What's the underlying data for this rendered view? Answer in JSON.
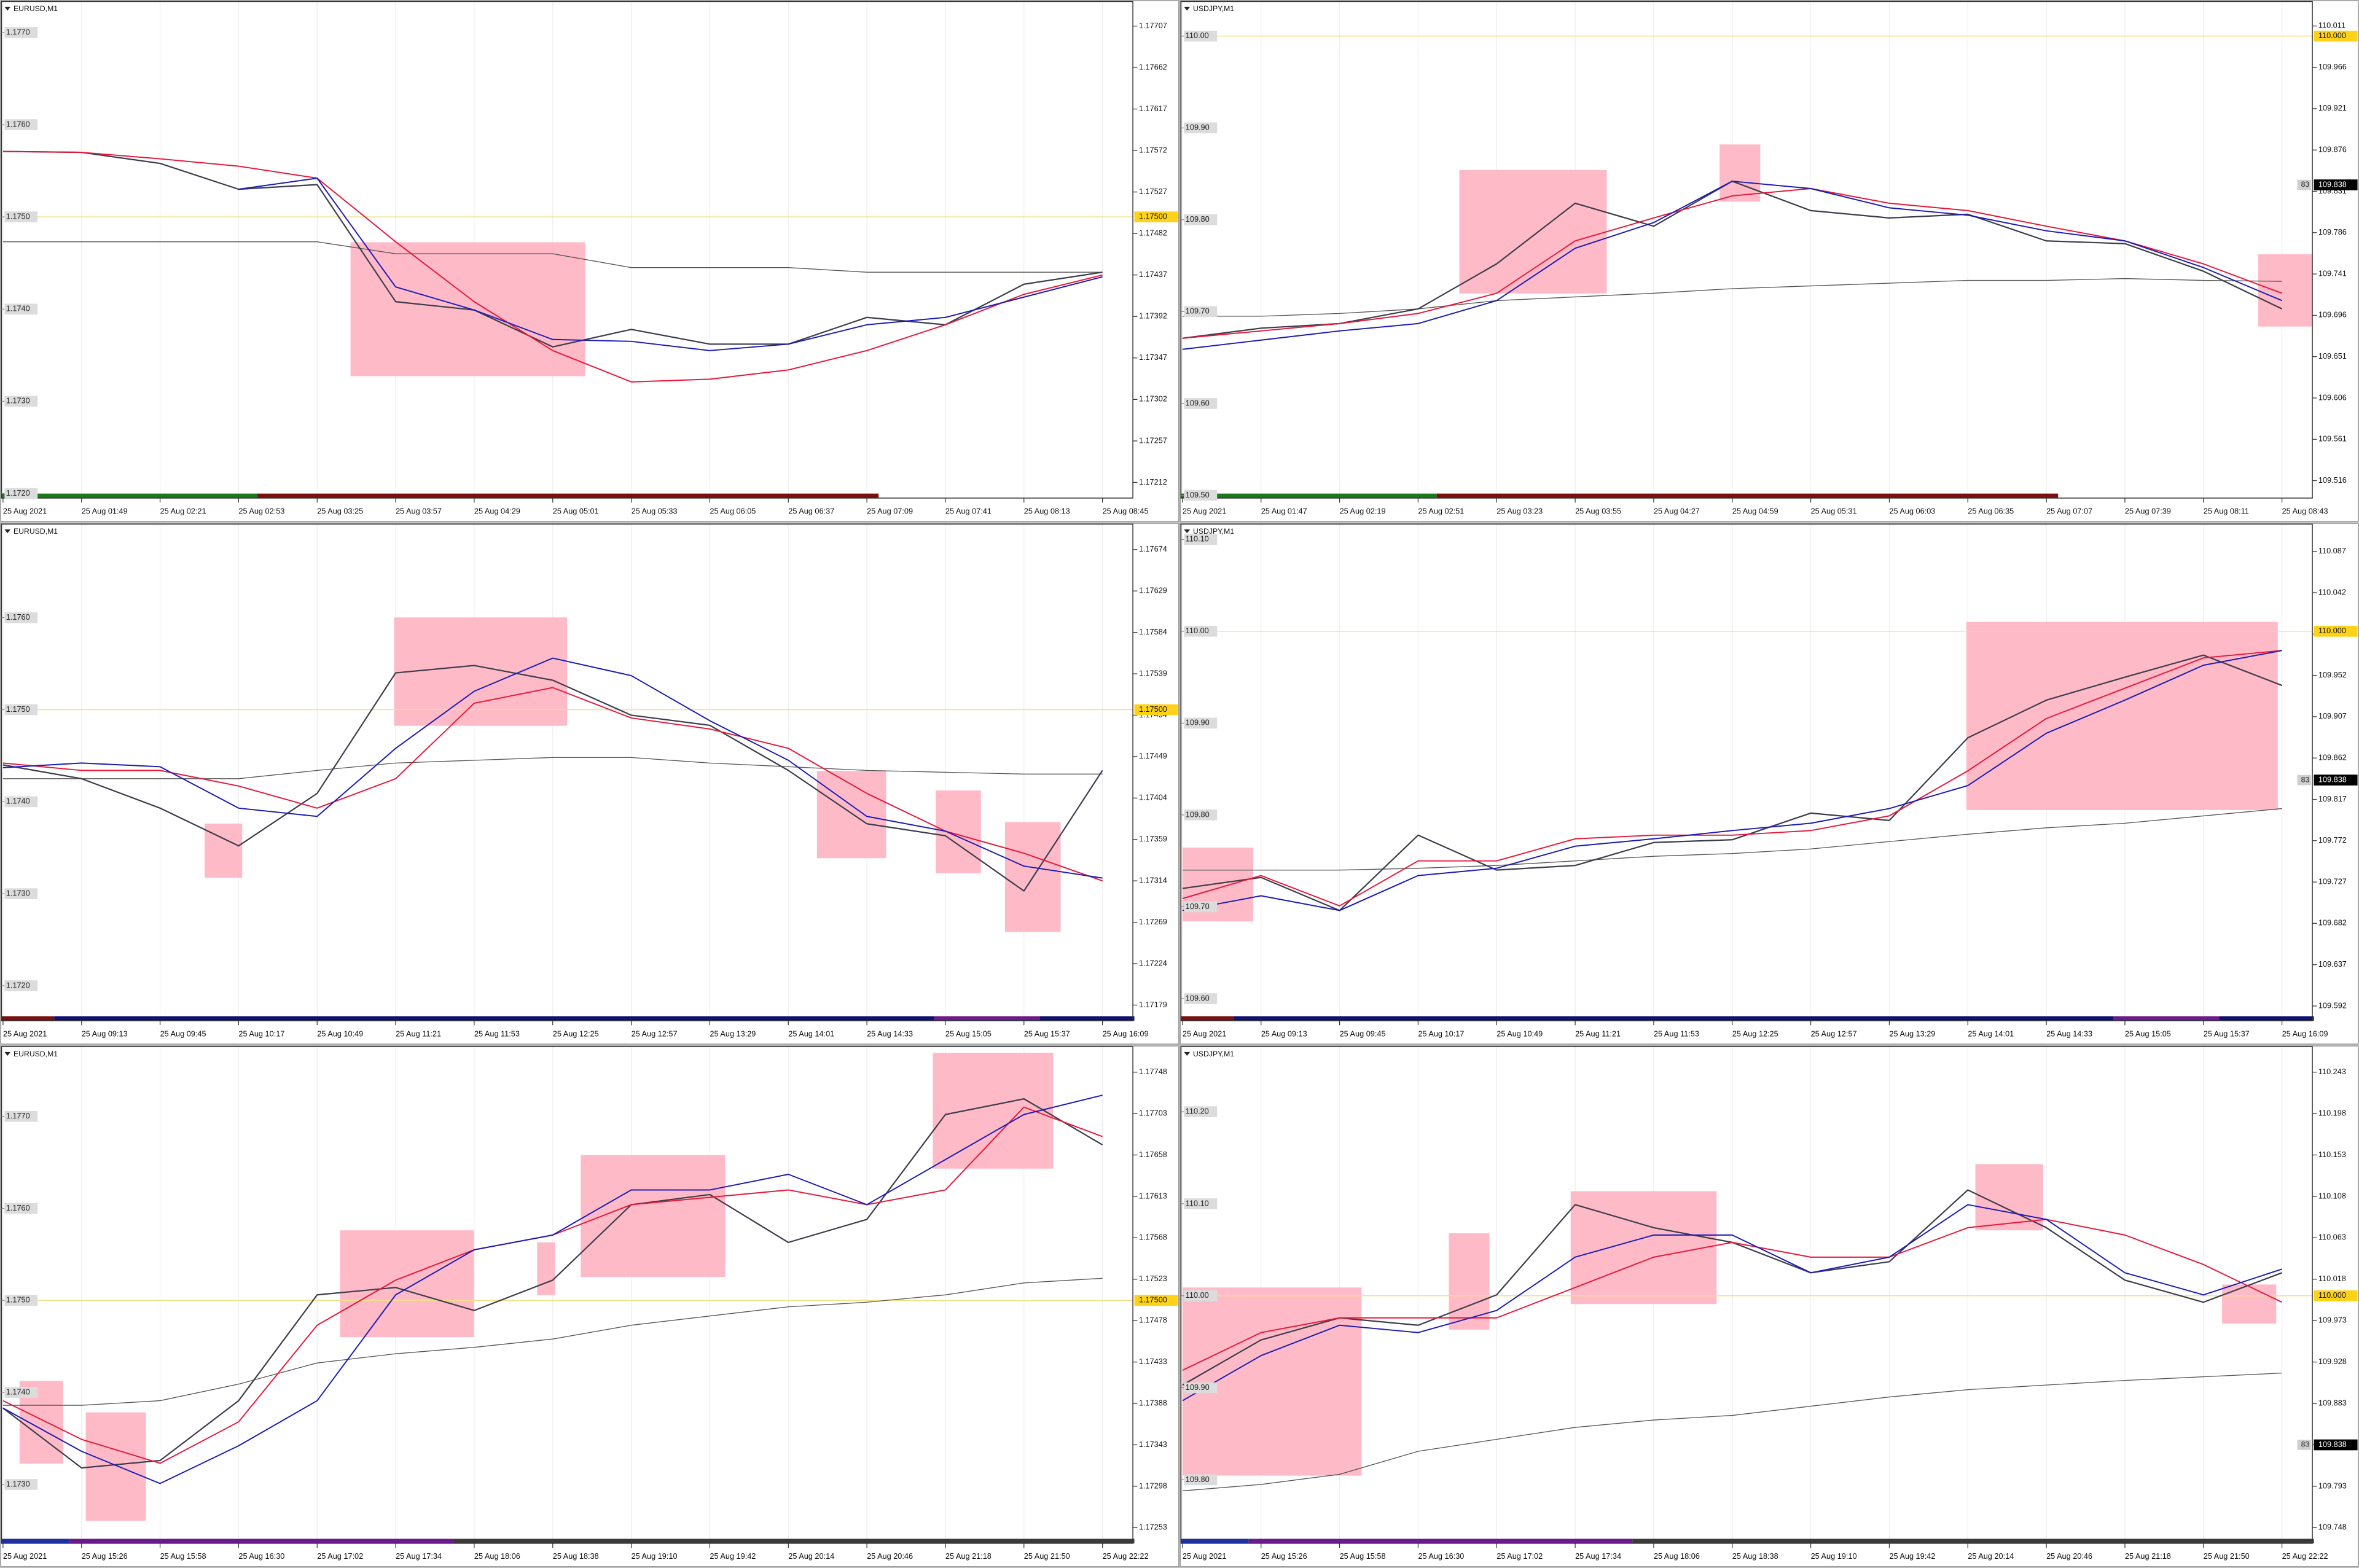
{
  "chart_data": [
    {
      "type": "line",
      "title": "EURUSD,M1",
      "categories": [
        "25 Aug 2021",
        "25 Aug 01:49",
        "25 Aug 02:21",
        "25 Aug 02:53",
        "25 Aug 03:25",
        "25 Aug 03:57",
        "25 Aug 04:29",
        "25 Aug 05:01",
        "25 Aug 05:33",
        "25 Aug 06:05",
        "25 Aug 06:37",
        "25 Aug 07:09",
        "25 Aug 07:41",
        "25 Aug 08:13",
        "25 Aug 08:45"
      ],
      "series": [
        {
          "color": "#3c3c4c",
          "values": [
            1.17571,
            1.1757,
            1.17558,
            1.1753,
            1.17535,
            1.17408,
            1.17399,
            1.17359,
            1.17378,
            1.17362,
            1.17362,
            1.17391,
            1.17383,
            1.17427,
            1.1744
          ]
        },
        {
          "color": "#e8173a",
          "values": [
            1.17571,
            1.1757,
            1.17563,
            1.17555,
            1.17542,
            1.17473,
            1.17408,
            1.17355,
            1.17321,
            1.17324,
            1.17334,
            1.17355,
            1.17383,
            1.17416,
            1.17437
          ]
        },
        {
          "color": "#1a1ab8",
          "values": [
            null,
            null,
            null,
            1.1753,
            1.17542,
            1.17424,
            1.17399,
            1.17367,
            1.17365,
            1.17355,
            1.17362,
            1.17383,
            1.17391,
            1.17413,
            1.17435
          ]
        },
        {
          "color": "#555555",
          "values": [
            1.17473,
            1.17473,
            1.17473,
            1.17473,
            1.17473,
            1.1746,
            1.1746,
            1.1746,
            1.17445,
            1.17445,
            1.17445,
            1.1744,
            1.1744,
            1.1744,
            1.1744
          ]
        }
      ],
      "ylim": [
        1.17195,
        1.17732
      ],
      "yticks": [
        1.17707,
        1.17662,
        1.17617,
        1.17572,
        1.17527,
        1.17482,
        1.17437,
        1.17392,
        1.17347,
        1.17302,
        1.17257,
        1.17212
      ],
      "levels": [
        {
          "value": 1.177,
          "label": "1.1770"
        },
        {
          "value": 1.176,
          "label": "1.1760"
        },
        {
          "value": 1.175,
          "label": "1.1750"
        },
        {
          "value": 1.174,
          "label": "1.1740"
        },
        {
          "value": 1.173,
          "label": "1.1730"
        },
        {
          "value": 1.172,
          "label": "1.1720"
        }
      ],
      "highlight_level": {
        "value": 1.175,
        "label": "1.17500"
      }
    },
    {
      "type": "line",
      "title": "USDJPY,M1",
      "categories": [
        "25 Aug 2021",
        "25 Aug 01:47",
        "25 Aug 02:19",
        "25 Aug 02:51",
        "25 Aug 03:23",
        "25 Aug 03:55",
        "25 Aug 04:27",
        "25 Aug 04:59",
        "25 Aug 05:31",
        "25 Aug 06:03",
        "25 Aug 06:35",
        "25 Aug 07:07",
        "25 Aug 07:39",
        "25 Aug 08:11",
        "25 Aug 08:43"
      ],
      "series": [
        {
          "color": "#3c3c4c",
          "values": [
            109.671,
            109.682,
            109.687,
            109.703,
            109.752,
            109.818,
            109.793,
            109.842,
            109.81,
            109.802,
            109.806,
            109.777,
            109.774,
            109.744,
            109.703
          ]
        },
        {
          "color": "#e8173a",
          "values": [
            109.671,
            109.679,
            109.687,
            109.698,
            109.72,
            109.777,
            109.802,
            109.826,
            109.834,
            109.818,
            109.81,
            109.793,
            109.777,
            109.752,
            109.72
          ]
        },
        {
          "color": "#1a1ab8",
          "values": [
            109.659,
            109.669,
            109.679,
            109.687,
            109.712,
            109.769,
            109.797,
            109.842,
            109.834,
            109.813,
            109.805,
            109.788,
            109.777,
            109.748,
            109.712
          ]
        },
        {
          "color": "#555555",
          "values": [
            109.695,
            109.695,
            109.698,
            109.703,
            109.712,
            109.716,
            109.72,
            109.725,
            109.728,
            109.731,
            109.734,
            109.734,
            109.736,
            109.734,
            109.733
          ]
        }
      ],
      "ylim": [
        109.497,
        110.036
      ],
      "yticks": [
        110.011,
        109.966,
        109.921,
        109.876,
        109.831,
        109.786,
        109.741,
        109.696,
        109.651,
        109.606,
        109.561,
        109.516
      ],
      "levels": [
        {
          "value": 110,
          "label": "110.00"
        },
        {
          "value": 109.9,
          "label": "109.90"
        },
        {
          "value": 109.8,
          "label": "109.80"
        },
        {
          "value": 109.7,
          "label": "109.70"
        },
        {
          "value": 109.6,
          "label": "109.60"
        },
        {
          "value": 109.5,
          "label": "109.50"
        }
      ],
      "highlight_level": {
        "value": 110,
        "label": "110.000"
      },
      "current_price": 109.838,
      "spread_label": "83"
    },
    {
      "type": "line",
      "title": "EURUSD,M1",
      "categories": [
        "25 Aug 2021",
        "25 Aug 09:13",
        "25 Aug 09:45",
        "25 Aug 10:17",
        "25 Aug 10:49",
        "25 Aug 11:21",
        "25 Aug 11:53",
        "25 Aug 12:25",
        "25 Aug 12:57",
        "25 Aug 13:29",
        "25 Aug 14:01",
        "25 Aug 14:33",
        "25 Aug 15:05",
        "25 Aug 15:37",
        "25 Aug 16:09"
      ],
      "series": [
        {
          "color": "#3c3c4c",
          "values": [
            1.1744,
            1.17425,
            1.17393,
            1.17352,
            1.17409,
            1.1754,
            1.17548,
            1.17532,
            1.17494,
            1.17483,
            1.17434,
            1.17376,
            1.17363,
            1.17303,
            1.17434
          ]
        },
        {
          "color": "#e8173a",
          "values": [
            1.17442,
            1.17434,
            1.17434,
            1.17417,
            1.17393,
            1.17425,
            1.17507,
            1.17524,
            1.17491,
            1.17479,
            1.17458,
            1.17409,
            1.17368,
            1.17344,
            1.17314
          ]
        },
        {
          "color": "#1a1ab8",
          "values": [
            1.17437,
            1.17442,
            1.17438,
            1.17393,
            1.17384,
            1.17458,
            1.1752,
            1.17556,
            1.17537,
            1.17488,
            1.17445,
            1.17384,
            1.17368,
            1.1733,
            1.17317
          ]
        },
        {
          "color": "#555555",
          "values": [
            1.17425,
            1.17425,
            1.17425,
            1.17425,
            1.17434,
            1.17442,
            1.17445,
            1.17448,
            1.17448,
            1.17442,
            1.17438,
            1.17434,
            1.17432,
            1.1743,
            1.1743
          ]
        }
      ],
      "ylim": [
        1.17162,
        1.177
      ],
      "yticks": [
        1.17674,
        1.17629,
        1.17584,
        1.17539,
        1.17494,
        1.17449,
        1.17404,
        1.17359,
        1.17314,
        1.17269,
        1.17224,
        1.17179
      ],
      "levels": [
        {
          "value": 1.176,
          "label": "1.1760"
        },
        {
          "value": 1.175,
          "label": "1.1750"
        },
        {
          "value": 1.174,
          "label": "1.1740"
        },
        {
          "value": 1.173,
          "label": "1.1730"
        },
        {
          "value": 1.172,
          "label": "1.1720"
        }
      ],
      "highlight_level": {
        "value": 1.175,
        "label": "1.17500"
      }
    },
    {
      "type": "line",
      "title": "USDJPY,M1",
      "categories": [
        "25 Aug 2021",
        "25 Aug 09:13",
        "25 Aug 09:45",
        "25 Aug 10:17",
        "25 Aug 10:49",
        "25 Aug 11:21",
        "25 Aug 11:53",
        "25 Aug 12:25",
        "25 Aug 12:57",
        "25 Aug 13:29",
        "25 Aug 14:01",
        "25 Aug 14:33",
        "25 Aug 15:05",
        "25 Aug 15:37",
        "25 Aug 16:09"
      ],
      "series": [
        {
          "color": "#3c3c4c",
          "values": [
            109.72,
            109.732,
            109.696,
            109.778,
            109.74,
            109.745,
            109.77,
            109.773,
            109.802,
            109.794,
            109.884,
            109.925,
            109.95,
            109.974,
            109.941
          ]
        },
        {
          "color": "#e8173a",
          "values": [
            109.709,
            109.734,
            109.701,
            109.75,
            109.75,
            109.774,
            109.778,
            109.778,
            109.783,
            109.799,
            109.848,
            109.905,
            109.938,
            109.971,
            109.979
          ]
        },
        {
          "color": "#1a1ab8",
          "values": [
            109.696,
            109.712,
            109.696,
            109.734,
            109.742,
            109.766,
            109.774,
            109.783,
            109.791,
            109.807,
            109.832,
            109.889,
            109.925,
            109.963,
            109.979
          ]
        },
        {
          "color": "#555555",
          "values": [
            109.74,
            109.74,
            109.74,
            109.742,
            109.745,
            109.75,
            109.755,
            109.758,
            109.763,
            109.771,
            109.779,
            109.786,
            109.791,
            109.799,
            109.807
          ]
        }
      ],
      "ylim": [
        109.576,
        110.115
      ],
      "yticks": [
        110.087,
        110.042,
        109.997,
        109.952,
        109.907,
        109.862,
        109.817,
        109.772,
        109.727,
        109.682,
        109.637,
        109.592
      ],
      "levels": [
        {
          "value": 110.1,
          "label": "110.10"
        },
        {
          "value": 110,
          "label": "110.00"
        },
        {
          "value": 109.9,
          "label": "109.90"
        },
        {
          "value": 109.8,
          "label": "109.80"
        },
        {
          "value": 109.7,
          "label": "109.70"
        },
        {
          "value": 109.6,
          "label": "109.60"
        }
      ],
      "highlight_level": {
        "value": 110,
        "label": "110.000"
      },
      "current_price": 109.838,
      "spread_label": "83"
    },
    {
      "type": "line",
      "title": "EURUSD,M1",
      "categories": [
        "25 Aug 2021",
        "25 Aug 15:26",
        "25 Aug 15:58",
        "25 Aug 16:30",
        "25 Aug 17:02",
        "25 Aug 17:34",
        "25 Aug 18:06",
        "25 Aug 18:38",
        "25 Aug 19:10",
        "25 Aug 19:42",
        "25 Aug 20:14",
        "25 Aug 20:46",
        "25 Aug 21:18",
        "25 Aug 21:50",
        "25 Aug 22:22"
      ],
      "series": [
        {
          "color": "#3c3c4c",
          "values": [
            1.17383,
            1.17318,
            1.17326,
            1.17391,
            1.17506,
            1.17514,
            1.17489,
            1.17522,
            1.17604,
            1.17615,
            1.17563,
            1.17588,
            1.17702,
            1.17719,
            1.17669
          ]
        },
        {
          "color": "#e8173a",
          "values": [
            1.17391,
            1.17349,
            1.17323,
            1.17368,
            1.17473,
            1.17522,
            1.17555,
            1.17571,
            1.17604,
            1.17612,
            1.1762,
            1.17604,
            1.1762,
            1.1771,
            1.17678
          ]
        },
        {
          "color": "#1a1ab8",
          "values": [
            1.17383,
            1.17336,
            1.17301,
            1.17342,
            1.17391,
            1.17506,
            1.17555,
            1.17571,
            1.1762,
            1.1762,
            1.17637,
            1.17604,
            1.17653,
            1.17702,
            1.17723
          ]
        },
        {
          "color": "#555555",
          "values": [
            1.17386,
            1.17386,
            1.17391,
            1.17409,
            1.17432,
            1.17442,
            1.17449,
            1.17458,
            1.17473,
            1.17483,
            1.17493,
            1.17498,
            1.17506,
            1.17519,
            1.17524
          ]
        }
      ],
      "ylim": [
        1.17236,
        1.17774
      ],
      "yticks": [
        1.17748,
        1.17703,
        1.17658,
        1.17613,
        1.17568,
        1.17523,
        1.17478,
        1.17433,
        1.17388,
        1.17343,
        1.17298,
        1.17253
      ],
      "levels": [
        {
          "value": 1.177,
          "label": "1.1770"
        },
        {
          "value": 1.176,
          "label": "1.1760"
        },
        {
          "value": 1.175,
          "label": "1.1750"
        },
        {
          "value": 1.174,
          "label": "1.1740"
        },
        {
          "value": 1.173,
          "label": "1.1730"
        }
      ],
      "highlight_level": {
        "value": 1.175,
        "label": "1.17500"
      }
    },
    {
      "type": "line",
      "title": "USDJPY,M1",
      "categories": [
        "25 Aug 2021",
        "25 Aug 15:26",
        "25 Aug 15:58",
        "25 Aug 16:30",
        "25 Aug 17:02",
        "25 Aug 17:34",
        "25 Aug 18:06",
        "25 Aug 18:38",
        "25 Aug 19:10",
        "25 Aug 19:42",
        "25 Aug 20:14",
        "25 Aug 20:46",
        "25 Aug 21:18",
        "25 Aug 21:50",
        "25 Aug 22:22"
      ],
      "series": [
        {
          "color": "#3c3c4c",
          "values": [
            109.903,
            109.952,
            109.976,
            109.968,
            110.001,
            110.099,
            110.074,
            110.058,
            110.025,
            110.037,
            110.115,
            110.074,
            110.017,
            109.993,
            110.025
          ]
        },
        {
          "color": "#e8173a",
          "values": [
            109.919,
            109.96,
            109.976,
            109.976,
            109.976,
            110.009,
            110.042,
            110.058,
            110.042,
            110.042,
            110.074,
            110.083,
            110.066,
            110.034,
            109.993
          ]
        },
        {
          "color": "#1a1ab8",
          "values": [
            109.886,
            109.935,
            109.968,
            109.96,
            109.984,
            110.042,
            110.066,
            110.066,
            110.025,
            110.042,
            110.099,
            110.083,
            110.025,
            110.001,
            110.029
          ]
        },
        {
          "color": "#555555",
          "values": [
            109.788,
            109.795,
            109.806,
            109.831,
            109.844,
            109.857,
            109.865,
            109.87,
            109.88,
            109.89,
            109.898,
            109.903,
            109.908,
            109.912,
            109.916
          ]
        }
      ],
      "ylim": [
        109.731,
        110.269
      ],
      "yticks": [
        110.243,
        110.198,
        110.153,
        110.108,
        110.063,
        110.018,
        109.973,
        109.928,
        109.883,
        109.838,
        109.793,
        109.748
      ],
      "levels": [
        {
          "value": 110.2,
          "label": "110.20"
        },
        {
          "value": 110.1,
          "label": "110.10"
        },
        {
          "value": 110,
          "label": "110.00"
        },
        {
          "value": 109.9,
          "label": "109.90"
        },
        {
          "value": 109.8,
          "label": "109.80"
        }
      ],
      "highlight_level": {
        "value": 110,
        "label": "110.000"
      },
      "current_price": 109.838,
      "spread_label": "83"
    }
  ]
}
